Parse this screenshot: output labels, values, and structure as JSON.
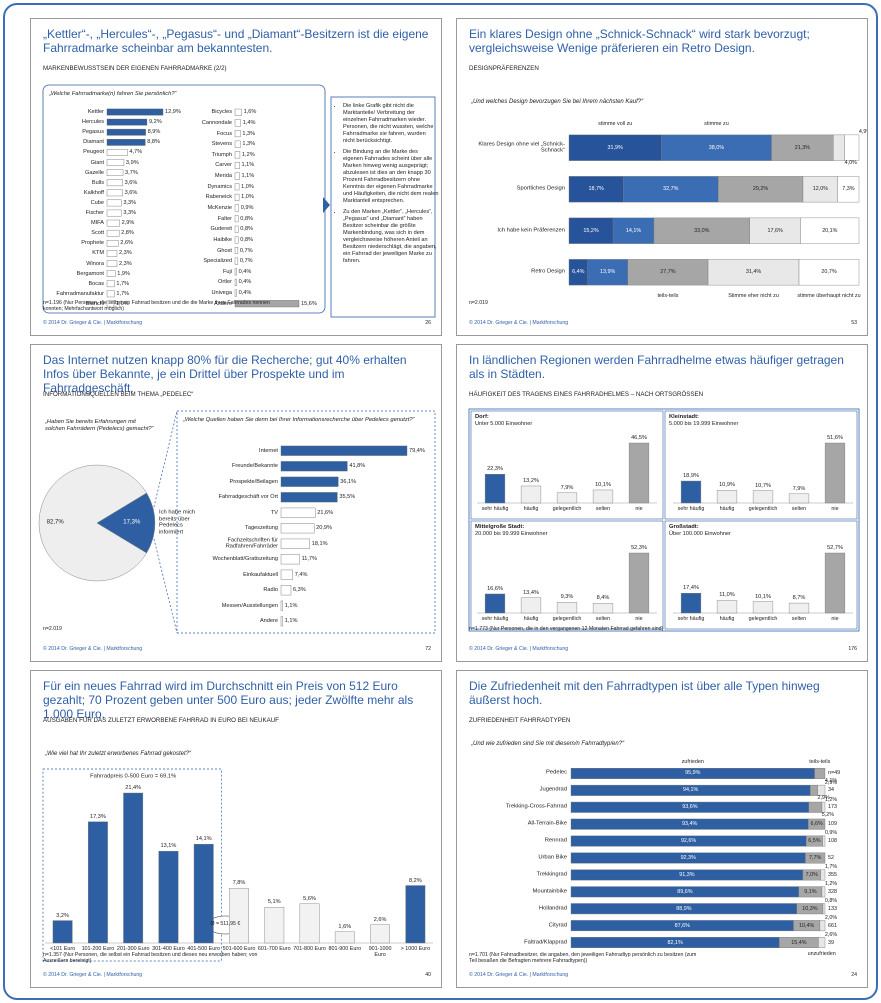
{
  "slides": [
    {
      "title": "„Kettler“-, „Hercules“-, „Pegasus“- und „Diamant“-Besitzern ist die eigene Fahrradmarke scheinbar am bekanntesten.",
      "subtitle": "MARKENBEWUSSTSEIN DER EIGENEN FAHRRADMARKE (2/2)",
      "notes": [
        "Die linke Grafik gibt nicht die Marktanteile/ Verbreitung der einzelnen Fahrradmarken wieder. Personen, die nicht wussten, welche Fahrradmarke sie fahren, wurden nicht berücksichtigt.",
        "Die Bindung an die Marke des eigenen Fahrrades scheint über alle Marken hinweg wenig ausgeprägt; abzulesen ist dies an den knapp 30 Prozent Fahrradbesitzern ohne Kenntnis der eigenen Fahrradmarke und Häufigkeiten, die nicht dem realen Marktanteil entsprechen.",
        "Zu den Marken „Kettler“, „Hercules“, „Pegasus“ und „Diamant“ haben Besitzer scheinbar die größte Markenbindung, was sich in dem vergleichsweise höheren Anteil an Besitzern niederschlägt, die angaben, ein Fahrrad der jeweiligen Marke zu fahren."
      ],
      "footnote": "n=1.196 (Nur Personen, die selbst ein Fahrrad besitzen und die die Marke ihres Fahrrades nennen konnten; Mehrfachantwort möglich)",
      "footer": "© 2014 Dr. Grieger & Cie. | Marktforschung",
      "page": "26"
    },
    {
      "title": "Ein klares Design ohne „Schnick-Schnack“ wird stark bevorzugt; vergleichsweise Wenige präferieren ein Retro Design.",
      "subtitle": "DESIGNPRÄFERENZEN",
      "question": "„Und welches Design bevorzugen Sie bei Ihrem nächsten Kauf?“",
      "footnote": "n=2.019",
      "footer": "© 2014 Dr. Grieger & Cie. | Marktforschung",
      "page": "53"
    },
    {
      "title": "Das Internet nutzen knapp 80% für die Recherche; gut 40% erhalten Infos über Bekannte, je ein Drittel über Prospekte und im Fahrradgeschäft.",
      "subtitle": "INFORMATIONSQUELLEN BEIM THEMA „PEDELEC“",
      "footnote": "n=2.019",
      "footer": "© 2014 Dr. Grieger & Cie. | Marktforschung",
      "page": "72"
    },
    {
      "title": "In ländlichen Regionen werden Fahrradhelme etwas häufiger getragen als in Städten.",
      "subtitle": "HÄUFIGKEIT DES TRAGENS EINES FAHRRADHELMES – NACH ORTSGRÖSSEN",
      "footnote": "n=1.773 (Nur Personen, die in den vergangenen 12 Monaten Fahrrad gefahren sind)",
      "footer": "© 2014 Dr. Grieger & Cie. | Marktforschung",
      "page": "176"
    },
    {
      "title": "Für ein neues Fahrrad wird im Durchschnitt ein Preis von 512 Euro gezahlt; 70 Prozent geben unter 500 Euro aus; jeder Zwölfte mehr als 1.000 Euro.",
      "subtitle": "AUSGABEN FÜR DAS ZULETZT ERWORBENE FAHRRAD IN EURO BEI NEUKAUF",
      "question": "„Wie viel hat Ihr zuletzt erworbenes Fahrrad gekostet?“",
      "footnote": "n=1.357 (Nur Personen, die selbst ein Fahrrad besitzen und dieses neu erworben haben; von Ausreißern bereinigt)",
      "footer": "© 2014 Dr. Grieger & Cie. | Marktforschung",
      "page": "40"
    },
    {
      "title": "Die Zufriedenheit mit den Fahrradtypen ist über alle Typen hinweg äußerst hoch.",
      "subtitle": "ZUFRIEDENHEIT FAHRRADTYPEN",
      "question": "„Und wie zufrieden sind Sie mit diesem/n Fahrradtyp/en?“",
      "footnote": "n=1.701 (Nur Fahrradbesitzer, die angaben, den jeweiligen Fahrradtyp persönlich zu besitzen (zum Teil besaßen die Befragten mehrere Fahrradtypen))",
      "footer": "© 2014 Dr. Grieger & Cie. | Marktforschung",
      "page": "24"
    }
  ],
  "chart_data": [
    {
      "type": "bar",
      "orientation": "horizontal",
      "question": "„Welche Fahrradmarke(n) fahren Sie persönlich?“",
      "categories": [
        "Kettler",
        "Hercules",
        "Pegasus",
        "Diamant",
        "Peugeot",
        "Giant",
        "Gazelle",
        "Bulls",
        "Kalkhoff",
        "Cube",
        "Fischer",
        "MIFA",
        "Scott",
        "Prophete",
        "KTM",
        "Winora",
        "Bergamont",
        "Bocas",
        "Fahrradmanufaktur",
        "Bianchi"
      ],
      "values": [
        12.9,
        9.2,
        8.9,
        8.8,
        4.7,
        3.9,
        3.7,
        3.6,
        3.6,
        3.3,
        3.3,
        2.9,
        2.8,
        2.6,
        2.3,
        2.3,
        1.9,
        1.7,
        1.7,
        1.6
      ],
      "value_labels": [
        "12,9%",
        "9,2%",
        "8,9%",
        "8,8%",
        "4,7%",
        "3,9%",
        "3,7%",
        "3,6%",
        "3,6%",
        "3,3%",
        "3,3%",
        "2,9%",
        "2,8%",
        "2,6%",
        "2,3%",
        "2,3%",
        "1,9%",
        "1,7%",
        "1,7%",
        "1,6%"
      ],
      "colors": [
        "#2e5fa3",
        "#2e5fa3",
        "#2e5fa3",
        "#2e5fa3",
        "#ffffff",
        "#ffffff",
        "#ffffff",
        "#ffffff",
        "#ffffff",
        "#ffffff",
        "#ffffff",
        "#ffffff",
        "#ffffff",
        "#ffffff",
        "#ffffff",
        "#ffffff",
        "#ffffff",
        "#ffffff",
        "#ffffff",
        "#ffffff"
      ]
    },
    {
      "type": "bar",
      "orientation": "horizontal",
      "categories": [
        "Bicycles",
        "Cannondale",
        "Focus",
        "Stevens",
        "Triumph",
        "Carver",
        "Merida",
        "Dynamics",
        "Rabeneick",
        "McKenzie",
        "Falter",
        "Gudereit",
        "Haibike",
        "Ghost",
        "Specialized",
        "Fuji",
        "Ortler",
        "Univega",
        "Andere"
      ],
      "values": [
        1.6,
        1.4,
        1.3,
        1.3,
        1.2,
        1.1,
        1.1,
        1.0,
        1.0,
        0.9,
        0.8,
        0.8,
        0.8,
        0.7,
        0.7,
        0.4,
        0.4,
        0.4,
        15.6
      ],
      "value_labels": [
        "1,6%",
        "1,4%",
        "1,3%",
        "1,3%",
        "1,2%",
        "1,1%",
        "1,1%",
        "1,0%",
        "1,0%",
        "0,9%",
        "0,8%",
        "0,8%",
        "0,8%",
        "0,7%",
        "0,7%",
        "0,4%",
        "0,4%",
        "0,4%",
        "15,6%"
      ],
      "colors": [
        "#ffffff",
        "#ffffff",
        "#ffffff",
        "#ffffff",
        "#ffffff",
        "#ffffff",
        "#ffffff",
        "#ffffff",
        "#ffffff",
        "#ffffff",
        "#ffffff",
        "#ffffff",
        "#ffffff",
        "#ffffff",
        "#ffffff",
        "#ffffff",
        "#ffffff",
        "#ffffff",
        "#a6a6a6"
      ]
    },
    {
      "type": "bar",
      "orientation": "horizontal",
      "stacked": true,
      "categories": [
        "Klares Design ohne viel „Schnick-Schnack“",
        "Sportliches Design",
        "Ich habe kein Präferenzen",
        "Retro Design"
      ],
      "series": [
        {
          "name": "stimme voll zu",
          "color": "#27539a",
          "values": [
            31.9,
            18.7,
            15.2,
            6.4
          ],
          "value_labels": [
            "31,9%",
            "18,7%",
            "15,2%",
            "6,4%"
          ]
        },
        {
          "name": "stimme zu",
          "color": "#3a6db3",
          "values": [
            38.0,
            32.7,
            14.1,
            13.9
          ],
          "value_labels": [
            "38,0%",
            "32,7%",
            "14,1%",
            "13,9%"
          ]
        },
        {
          "name": "teils-teils",
          "color": "#a6a6a6",
          "values": [
            21.3,
            29.2,
            33.0,
            27.7
          ],
          "value_labels": [
            "21,3%",
            "29,2%",
            "33,0%",
            "27,7%"
          ]
        },
        {
          "name": "Stimme eher nicht zu",
          "color": "#e8e8e8",
          "values": [
            4.0,
            12.0,
            17.6,
            31.4
          ],
          "value_labels": [
            "4,0%",
            "12,0%",
            "17,6%",
            "31,4%"
          ]
        },
        {
          "name": "stimme überhaupt nicht zu",
          "color": "#ffffff",
          "values": [
            4.9,
            7.3,
            20.1,
            20.7
          ],
          "value_labels": [
            "4,9%",
            "7,3%",
            "20,1%",
            "20,7%"
          ]
        }
      ]
    },
    {
      "type": "pie",
      "question": "„Haben Sie bereits Erfahrungen mit solchen Fahrrädern (Pedelecs) gemacht?“",
      "categories": [
        null,
        "Ich habe mich bereits über Pedelecs informiert"
      ],
      "values": [
        82.7,
        17.3
      ],
      "value_labels": [
        "82,7%",
        "17,3%"
      ],
      "colors": [
        "#eeeeee",
        "#2e5fa3"
      ]
    },
    {
      "type": "bar",
      "orientation": "horizontal",
      "question": "„Welche Quellen haben Sie denn bei Ihrer Informationsrecherche über Pedelecs genutzt?“",
      "categories": [
        "Internet",
        "Freunde/Bekannte",
        "Prospekte/Beilagen",
        "Fahrradgeschäft vor Ort",
        "TV",
        "Tageszeitung",
        "Fachzeitschriften für Radfahren/Fahrräder",
        "Wochenblatt/Gratiszeitung",
        "Einkaufaktuell",
        "Radio",
        "Messen/Ausstellungen",
        "Andere"
      ],
      "values": [
        79.4,
        41.8,
        36.1,
        35.5,
        21.6,
        20.9,
        18.1,
        11.7,
        7.4,
        6.3,
        1.1,
        1.1
      ],
      "value_labels": [
        "79,4%",
        "41,8%",
        "36,1%",
        "35,5%",
        "21,6%",
        "20,9%",
        "18,1%",
        "11,7%",
        "7,4%",
        "6,3%",
        "1,1%",
        "1,1%"
      ],
      "colors": [
        "#2e5fa3",
        "#2e5fa3",
        "#2e5fa3",
        "#2e5fa3",
        "#ffffff",
        "#ffffff",
        "#ffffff",
        "#ffffff",
        "#ffffff",
        "#ffffff",
        "#ffffff",
        "#ffffff"
      ]
    },
    {
      "type": "bar",
      "title": "Dorf:",
      "subtitle": "Unter 5.000 Einwohner",
      "categories": [
        "sehr häufig",
        "häufig",
        "gelegentlich",
        "selten",
        "nie"
      ],
      "values": [
        22.3,
        13.2,
        7.9,
        10.1,
        46.5
      ],
      "value_labels": [
        "22,3%",
        "13,2%",
        "7,9%",
        "10,1%",
        "46,5%"
      ],
      "colors": [
        "#2e5fa3",
        "#efefef",
        "#efefef",
        "#efefef",
        "#a6a6a6"
      ]
    },
    {
      "type": "bar",
      "title": "Kleinstadt:",
      "subtitle": "5.000 bis 19.999 Einwohner",
      "categories": [
        "sehr häufig",
        "häufig",
        "gelegentlich",
        "selten",
        "nie"
      ],
      "values": [
        18.9,
        10.9,
        10.7,
        7.9,
        51.6
      ],
      "value_labels": [
        "18,9%",
        "10,9%",
        "10,7%",
        "7,9%",
        "51,6%"
      ],
      "colors": [
        "#2e5fa3",
        "#efefef",
        "#efefef",
        "#efefef",
        "#a6a6a6"
      ]
    },
    {
      "type": "bar",
      "title": "Mittelgroße Stadt:",
      "subtitle": "20.000 bis 99.999 Einwohner",
      "categories": [
        "sehr häufig",
        "häufig",
        "gelegentlich",
        "selten",
        "nie"
      ],
      "values": [
        16.6,
        13.4,
        9.3,
        8.4,
        52.3
      ],
      "value_labels": [
        "16,6%",
        "13,4%",
        "9,3%",
        "8,4%",
        "52,3%"
      ],
      "colors": [
        "#2e5fa3",
        "#efefef",
        "#efefef",
        "#efefef",
        "#a6a6a6"
      ]
    },
    {
      "type": "bar",
      "title": "Großstadt:",
      "subtitle": "Über 100.000 Einwohner",
      "categories": [
        "sehr häufig",
        "häufig",
        "gelegentlich",
        "selten",
        "nie"
      ],
      "values": [
        17.4,
        11.0,
        10.1,
        8.7,
        52.7
      ],
      "value_labels": [
        "17,4%",
        "11,0%",
        "10,1%",
        "8,7%",
        "52,7%"
      ],
      "colors": [
        "#2e5fa3",
        "#efefef",
        "#efefef",
        "#efefef",
        "#a6a6a6"
      ]
    },
    {
      "type": "bar",
      "annotation": "Fahrradpreis 0-500 Euro = 69,1%",
      "mean_label": "Ø = 511,95 €",
      "categories": [
        "<101 Euro",
        "101-200 Euro",
        "201-300 Euro",
        "301-400 Euro",
        "401-500 Euro",
        "501-600 Euro",
        "601-700 Euro",
        "701-800 Euro",
        "801-900 Euro",
        "901-1000 Euro",
        "> 1000 Euro"
      ],
      "values": [
        3.2,
        17.3,
        21.4,
        13.1,
        14.1,
        7.8,
        5.1,
        5.6,
        1.6,
        2.6,
        8.2
      ],
      "value_labels": [
        "3,2%",
        "17,3%",
        "21,4%",
        "13,1%",
        "14,1%",
        "7,8%",
        "5,1%",
        "5,6%",
        "1,6%",
        "2,6%",
        "8,2%"
      ],
      "colors": [
        "#2e5fa3",
        "#2e5fa3",
        "#2e5fa3",
        "#2e5fa3",
        "#2e5fa3",
        "#f2f2f2",
        "#f2f2f2",
        "#f2f2f2",
        "#f2f2f2",
        "#f2f2f2",
        "#2e5fa3"
      ]
    },
    {
      "type": "bar",
      "orientation": "horizontal",
      "stacked": true,
      "categories": [
        "Pedelec",
        "Jugendrad",
        "Trekking-Cross-Fahrrad",
        "All-Terrain-Bike",
        "Rennrad",
        "Urban Bike",
        "Trekkingrad",
        "Mountainbike",
        "Hollandrad",
        "Cityrad",
        "Faltrad/Klapprad"
      ],
      "series": [
        {
          "name": "zufrieden",
          "color": "#2e5fa3",
          "values": [
            95.9,
            94.1,
            93.6,
            93.4,
            92.6,
            92.3,
            91.3,
            89.6,
            88.9,
            87.6,
            82.1
          ],
          "value_labels": [
            "95,9%",
            "94,1%",
            "93,6%",
            "93,4%",
            "92,6%",
            "92,3%",
            "91,3%",
            "89,6%",
            "88,9%",
            "87,6%",
            "82,1%"
          ]
        },
        {
          "name": "teils-teils",
          "color": "#a6a6a6",
          "values": [
            4.1,
            2.9,
            5.2,
            6.6,
            6.5,
            7.7,
            7.0,
            9.1,
            10.3,
            10.4,
            15.4
          ],
          "value_labels": [
            "4,1%",
            "2,9%",
            "5,2%",
            "6,6%",
            "6,5%",
            "7,7%",
            "7,0%",
            "9,1%",
            "10,3%",
            "10,4%",
            "15,4%"
          ]
        },
        {
          "name": "unzufrieden",
          "color": "#e6e6e6",
          "values": [
            0,
            2.9,
            1.2,
            0,
            0.9,
            0,
            1.7,
            1.2,
            0.8,
            2.0,
            2.6
          ],
          "value_labels": [
            null,
            "2,9%",
            "1,2%",
            null,
            "0,9%",
            null,
            "1,7%",
            "1,2%",
            "0,8%",
            "2,0%",
            "2,6%"
          ]
        }
      ],
      "n": [
        49,
        34,
        173,
        109,
        108,
        52,
        355,
        328,
        133,
        661,
        39
      ],
      "n_labels": [
        "n=49",
        "34",
        "173",
        "109",
        "108",
        "52",
        "355",
        "328",
        "133",
        "661",
        "39"
      ]
    }
  ]
}
